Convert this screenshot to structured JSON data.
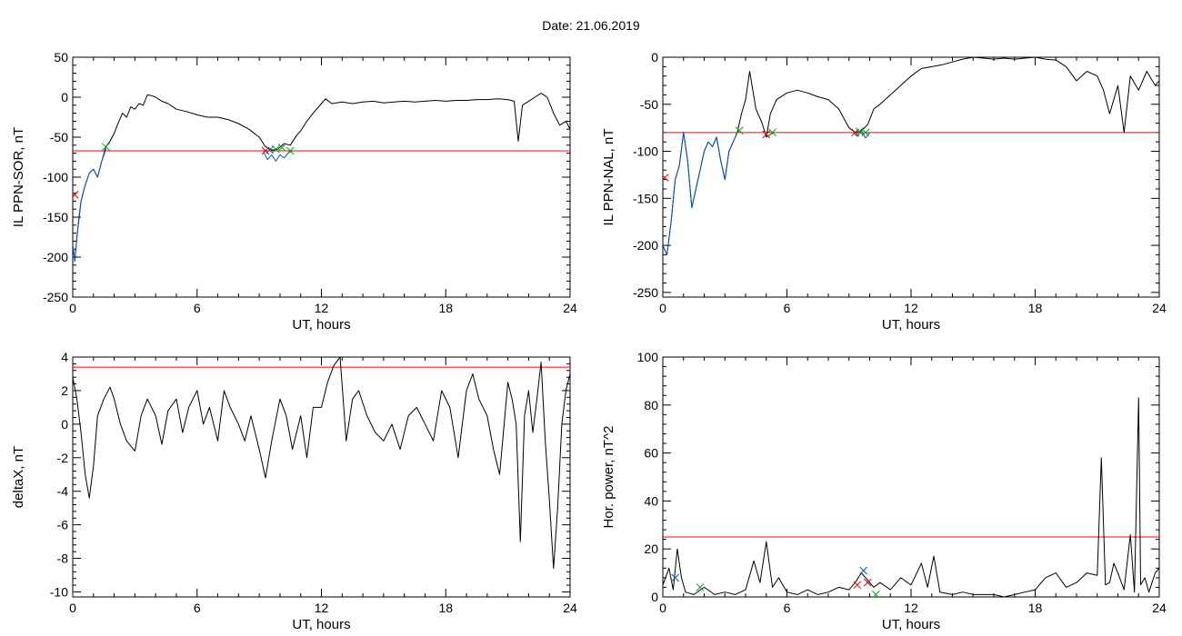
{
  "title": "Date:  21.06.2019",
  "chart_data": [
    {
      "type": "line",
      "ylabel": "IL PPN-SOR, nT",
      "xlabel": "UT, hours",
      "xlim": [
        0,
        24
      ],
      "ylim": [
        -250,
        50
      ],
      "xticks": [
        0,
        6,
        12,
        18,
        24
      ],
      "yticks": [
        50,
        0,
        -50,
        -100,
        -150,
        -200,
        -250
      ],
      "threshold": -67,
      "threshold_color": "#ff0000",
      "series": [
        {
          "color": "#000000",
          "x": [
            0,
            0.1,
            0.2,
            0.4,
            0.6,
            0.8,
            1.0,
            1.2,
            1.4,
            1.6,
            1.8,
            2.0,
            2.2,
            2.4,
            2.6,
            2.8,
            3.0,
            3.2,
            3.4,
            3.6,
            3.8,
            4.0,
            4.3,
            4.6,
            5.0,
            5.5,
            6.0,
            6.5,
            7.0,
            7.5,
            8.0,
            8.5,
            9.0,
            9.3,
            9.6,
            9.9,
            10.2,
            10.5,
            10.8,
            11.0,
            11.3,
            11.6,
            12.0,
            12.2,
            12.5,
            13.0,
            13.5,
            14.0,
            14.5,
            15.0,
            15.5,
            16.0,
            16.5,
            17.0,
            17.5,
            18.0,
            18.5,
            19.0,
            19.5,
            20.0,
            20.5,
            21.0,
            21.3,
            21.5,
            21.7,
            22.0,
            22.3,
            22.6,
            22.9,
            23.2,
            23.5,
            23.8,
            24.0
          ],
          "y": [
            -185,
            -205,
            -175,
            -130,
            -110,
            -95,
            -90,
            -100,
            -80,
            -62,
            -55,
            -45,
            -32,
            -20,
            -25,
            -12,
            -15,
            -8,
            -10,
            3,
            2,
            0,
            -5,
            -8,
            -15,
            -18,
            -22,
            -25,
            -25,
            -28,
            -33,
            -40,
            -50,
            -62,
            -66,
            -65,
            -58,
            -60,
            -48,
            -42,
            -30,
            -20,
            -8,
            -2,
            -8,
            -6,
            -8,
            -6,
            -5,
            -7,
            -6,
            -5,
            -6,
            -5,
            -4,
            -5,
            -4,
            -4,
            -3,
            -3,
            -2,
            -3,
            -5,
            -55,
            -10,
            -5,
            0,
            5,
            0,
            -20,
            -35,
            -30,
            -40
          ]
        },
        {
          "color": "#0055cc",
          "x": [
            0,
            0.1,
            0.2,
            0.3,
            0.4,
            0.6,
            0.8,
            1.0,
            1.2,
            1.4,
            1.6
          ],
          "y": [
            -185,
            -205,
            -175,
            -150,
            -130,
            -110,
            -95,
            -90,
            -100,
            -80,
            -65
          ]
        },
        {
          "color": "#0055cc",
          "x": [
            9.2,
            9.4,
            9.6,
            9.8,
            10.0,
            10.2,
            10.4,
            10.6
          ],
          "y": [
            -68,
            -78,
            -72,
            -80,
            -72,
            -76,
            -70,
            -67
          ]
        }
      ],
      "markers": [
        {
          "x": 0.1,
          "y": -122,
          "color": "#ff0000"
        },
        {
          "x": 1.6,
          "y": -62,
          "color": "#00aa00"
        },
        {
          "x": 9.3,
          "y": -67,
          "color": "#ff0000"
        },
        {
          "x": 9.8,
          "y": -65,
          "color": "#00aa00"
        },
        {
          "x": 10.1,
          "y": -63,
          "color": "#00aa00"
        },
        {
          "x": 10.5,
          "y": -67,
          "color": "#00aa00"
        },
        {
          "x": 9.5,
          "y": -66,
          "color": "#0055cc"
        }
      ]
    },
    {
      "type": "line",
      "ylabel": "IL PPN-NAL, nT",
      "xlabel": "UT, hours",
      "xlim": [
        0,
        24
      ],
      "ylim": [
        -255,
        0
      ],
      "xticks": [
        0,
        6,
        12,
        18,
        24
      ],
      "yticks": [
        0,
        -50,
        -100,
        -150,
        -200,
        -250
      ],
      "threshold": -80,
      "threshold_color": "#ff0000",
      "series": [
        {
          "color": "#000000",
          "x": [
            0,
            0.2,
            0.4,
            0.6,
            0.8,
            1.0,
            1.2,
            1.4,
            1.6,
            1.8,
            2.0,
            2.2,
            2.4,
            2.6,
            2.8,
            3.0,
            3.2,
            3.4,
            3.6,
            3.8,
            4.0,
            4.2,
            4.5,
            4.8,
            5.0,
            5.2,
            5.5,
            6.0,
            6.5,
            7.0,
            7.5,
            8.0,
            8.5,
            9.0,
            9.3,
            9.6,
            9.9,
            10.2,
            10.5,
            11.0,
            11.5,
            12.0,
            12.5,
            13.0,
            13.5,
            14.0,
            14.5,
            15.0,
            15.5,
            16.0,
            16.5,
            17.0,
            17.5,
            18.0,
            18.5,
            19.0,
            19.5,
            20.0,
            20.5,
            21.0,
            21.3,
            21.6,
            22.0,
            22.3,
            22.6,
            23.0,
            23.4,
            23.8,
            24.0
          ],
          "y": [
            -200,
            -210,
            -175,
            -130,
            -115,
            -80,
            -110,
            -160,
            -140,
            -120,
            -100,
            -90,
            -95,
            -85,
            -110,
            -130,
            -100,
            -90,
            -80,
            -60,
            -45,
            -15,
            -55,
            -70,
            -85,
            -60,
            -45,
            -38,
            -35,
            -38,
            -42,
            -45,
            -55,
            -75,
            -80,
            -78,
            -72,
            -55,
            -50,
            -40,
            -30,
            -20,
            -12,
            -10,
            -8,
            -5,
            -2,
            0,
            -1,
            -2,
            -1,
            -2,
            -1,
            0,
            -2,
            -3,
            -10,
            -25,
            -15,
            -20,
            -35,
            -60,
            -30,
            -80,
            -20,
            -35,
            -15,
            -30,
            -25
          ]
        },
        {
          "color": "#0055cc",
          "x": [
            0,
            0.2,
            0.4,
            0.6,
            0.8,
            1.0,
            1.2,
            1.4,
            1.6,
            1.8,
            2.0,
            2.2,
            2.4,
            2.6,
            2.8,
            3.0,
            3.2,
            3.4,
            3.6
          ],
          "y": [
            -200,
            -210,
            -175,
            -130,
            -115,
            -80,
            -110,
            -160,
            -140,
            -120,
            -100,
            -90,
            -95,
            -85,
            -110,
            -130,
            -100,
            -90,
            -80
          ]
        },
        {
          "color": "#0055cc",
          "x": [
            5.0,
            5.2,
            5.4
          ],
          "y": [
            -85,
            -82,
            -80
          ]
        },
        {
          "color": "#0055cc",
          "x": [
            9.2,
            9.4,
            9.6,
            9.8,
            10.0
          ],
          "y": [
            -80,
            -84,
            -78,
            -86,
            -80
          ]
        }
      ],
      "markers": [
        {
          "x": 0.1,
          "y": -128,
          "color": "#ff0000"
        },
        {
          "x": 3.7,
          "y": -78,
          "color": "#00aa00"
        },
        {
          "x": 5.0,
          "y": -82,
          "color": "#ff0000"
        },
        {
          "x": 5.3,
          "y": -80,
          "color": "#00aa00"
        },
        {
          "x": 9.3,
          "y": -80,
          "color": "#ff0000"
        },
        {
          "x": 9.5,
          "y": -79,
          "color": "#00aa00"
        },
        {
          "x": 9.8,
          "y": -80,
          "color": "#00aa00"
        }
      ]
    },
    {
      "type": "line",
      "ylabel": "deltaX, nT",
      "xlabel": "UT, hours",
      "xlim": [
        0,
        24
      ],
      "ylim": [
        -10.3,
        4
      ],
      "xticks": [
        0,
        6,
        12,
        18,
        24
      ],
      "yticks": [
        4,
        2,
        0,
        -2,
        -4,
        -6,
        -8,
        -10
      ],
      "threshold": 3.4,
      "threshold_color": "#ff0000",
      "series": [
        {
          "color": "#000000",
          "x": [
            0,
            0.2,
            0.4,
            0.6,
            0.8,
            1.0,
            1.2,
            1.5,
            1.8,
            2.0,
            2.3,
            2.6,
            3.0,
            3.3,
            3.6,
            4.0,
            4.3,
            4.6,
            5.0,
            5.3,
            5.6,
            6.0,
            6.3,
            6.6,
            7.0,
            7.3,
            7.6,
            8.0,
            8.3,
            8.6,
            9.0,
            9.3,
            9.6,
            10.0,
            10.3,
            10.6,
            11.0,
            11.3,
            11.6,
            12.0,
            12.3,
            12.6,
            12.9,
            13.2,
            13.5,
            13.8,
            14.2,
            14.6,
            15.0,
            15.4,
            15.8,
            16.2,
            16.6,
            17.0,
            17.4,
            17.8,
            18.2,
            18.6,
            19.0,
            19.3,
            19.6,
            20.0,
            20.3,
            20.6,
            21.0,
            21.2,
            21.4,
            21.6,
            21.8,
            22.0,
            22.2,
            22.4,
            22.6,
            22.8,
            23.0,
            23.2,
            23.4,
            23.6,
            23.8,
            24.0
          ],
          "y": [
            2.8,
            1.5,
            -0.5,
            -3.0,
            -4.4,
            -2.5,
            0.5,
            1.5,
            2.2,
            1.5,
            0.0,
            -1.0,
            -1.6,
            0.5,
            1.5,
            0.5,
            -1.2,
            0.8,
            1.5,
            -0.5,
            1.0,
            2.0,
            0.0,
            1.0,
            -1.0,
            2.0,
            1.0,
            0.0,
            -1.0,
            0.5,
            -1.5,
            -3.2,
            -1.0,
            1.5,
            0.5,
            -1.5,
            0.5,
            -2.0,
            1.0,
            1.0,
            2.5,
            3.5,
            4.0,
            -1.0,
            1.5,
            2.0,
            0.5,
            -0.5,
            -1.0,
            0.0,
            -1.5,
            0.5,
            1.0,
            0.0,
            -1.0,
            2.0,
            1.0,
            -2.0,
            2.0,
            3.0,
            1.5,
            0.5,
            -1.5,
            -3.0,
            2.5,
            1.5,
            0.0,
            -7.0,
            0.5,
            2.0,
            -0.5,
            1.5,
            3.7,
            -1.0,
            -4.5,
            -8.6,
            -5.0,
            0.0,
            2.0,
            3.0
          ]
        }
      ],
      "markers": []
    },
    {
      "type": "line",
      "ylabel": "Hor. power, nT^2",
      "xlabel": "UT, hours",
      "xlim": [
        0,
        24
      ],
      "ylim": [
        0,
        100
      ],
      "xticks": [
        0,
        6,
        12,
        18,
        24
      ],
      "yticks": [
        100,
        80,
        60,
        40,
        20,
        0
      ],
      "threshold": 25,
      "threshold_color": "#ff0000",
      "series": [
        {
          "color": "#000000",
          "x": [
            0,
            0.3,
            0.5,
            0.7,
            0.9,
            1.1,
            1.5,
            2.0,
            2.5,
            3.0,
            3.5,
            4.0,
            4.4,
            4.7,
            5.0,
            5.3,
            5.6,
            6.0,
            6.5,
            7.0,
            7.5,
            8.0,
            8.5,
            9.0,
            9.3,
            9.6,
            9.9,
            10.2,
            10.5,
            11.0,
            11.5,
            12.0,
            12.5,
            12.8,
            13.1,
            13.4,
            14.0,
            14.5,
            15.0,
            15.5,
            16.0,
            16.5,
            17.0,
            17.5,
            18.0,
            18.5,
            19.0,
            19.5,
            20.0,
            20.5,
            21.0,
            21.2,
            21.4,
            21.6,
            21.8,
            22.0,
            22.3,
            22.6,
            22.8,
            23.0,
            23.1,
            23.3,
            23.5,
            23.8,
            24.0
          ],
          "y": [
            5,
            12,
            3,
            20,
            8,
            2,
            1,
            4,
            1,
            2,
            1,
            3,
            15,
            6,
            23,
            4,
            8,
            2,
            1,
            3,
            1,
            2,
            4,
            3,
            6,
            10,
            7,
            4,
            6,
            3,
            8,
            5,
            14,
            4,
            17,
            2,
            1,
            2,
            1,
            1,
            1,
            0,
            1,
            2,
            3,
            8,
            10,
            4,
            6,
            10,
            9,
            58,
            5,
            6,
            14,
            10,
            3,
            26,
            2,
            83,
            5,
            8,
            2,
            10,
            12
          ]
        }
      ],
      "markers": [
        {
          "x": 0.6,
          "y": 8,
          "color": "#0055cc"
        },
        {
          "x": 1.8,
          "y": 4,
          "color": "#00aa00"
        },
        {
          "x": 9.4,
          "y": 5,
          "color": "#ff0000"
        },
        {
          "x": 9.7,
          "y": 11,
          "color": "#0055cc"
        },
        {
          "x": 9.9,
          "y": 6,
          "color": "#ff0000"
        },
        {
          "x": 10.3,
          "y": 1,
          "color": "#00aa00"
        }
      ]
    }
  ]
}
